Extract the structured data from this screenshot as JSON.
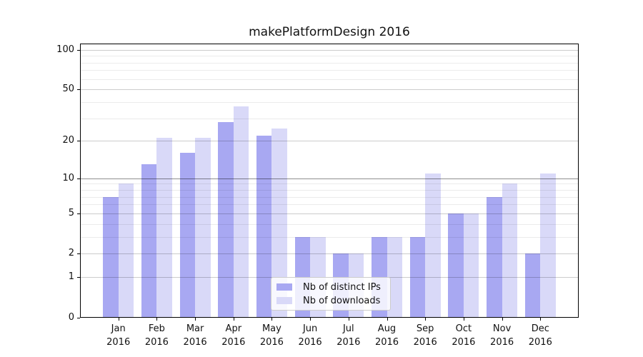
{
  "chart_data": {
    "type": "bar",
    "title": "makePlatformDesign 2016",
    "categories": [
      "Jan",
      "Feb",
      "Mar",
      "Apr",
      "May",
      "Jun",
      "Jul",
      "Aug",
      "Sep",
      "Oct",
      "Nov",
      "Dec"
    ],
    "category_year": "2016",
    "series": [
      {
        "name": "Nb of distinct IPs",
        "color": "#a8a8f2",
        "values": [
          7,
          13,
          16,
          28,
          22,
          3,
          2,
          3,
          3,
          5,
          7,
          2
        ]
      },
      {
        "name": "Nb of downloads",
        "color": "#d9d9f8",
        "values": [
          9,
          21,
          21,
          37,
          25,
          3,
          2,
          3,
          11,
          5,
          9,
          11
        ]
      }
    ],
    "xlabel": "",
    "ylabel": "",
    "y_scale": "symlog (position proportional to ln(1+value))",
    "y_ticks": [
      0,
      1,
      2,
      5,
      10,
      20,
      50,
      100
    ],
    "y_minor_ticks": [
      3,
      4,
      6,
      7,
      8,
      9,
      30,
      40,
      60,
      70,
      80,
      90
    ],
    "ylim": [
      0,
      111
    ],
    "grid": "on",
    "highlighted_gridline": 10,
    "legend_position": "lower center",
    "grid_colors": {
      "minor": "rgba(0,0,0,0.08)",
      "major": "rgba(0,0,0,0.20)",
      "highlight": "rgba(0,0,0,0.44)"
    }
  }
}
